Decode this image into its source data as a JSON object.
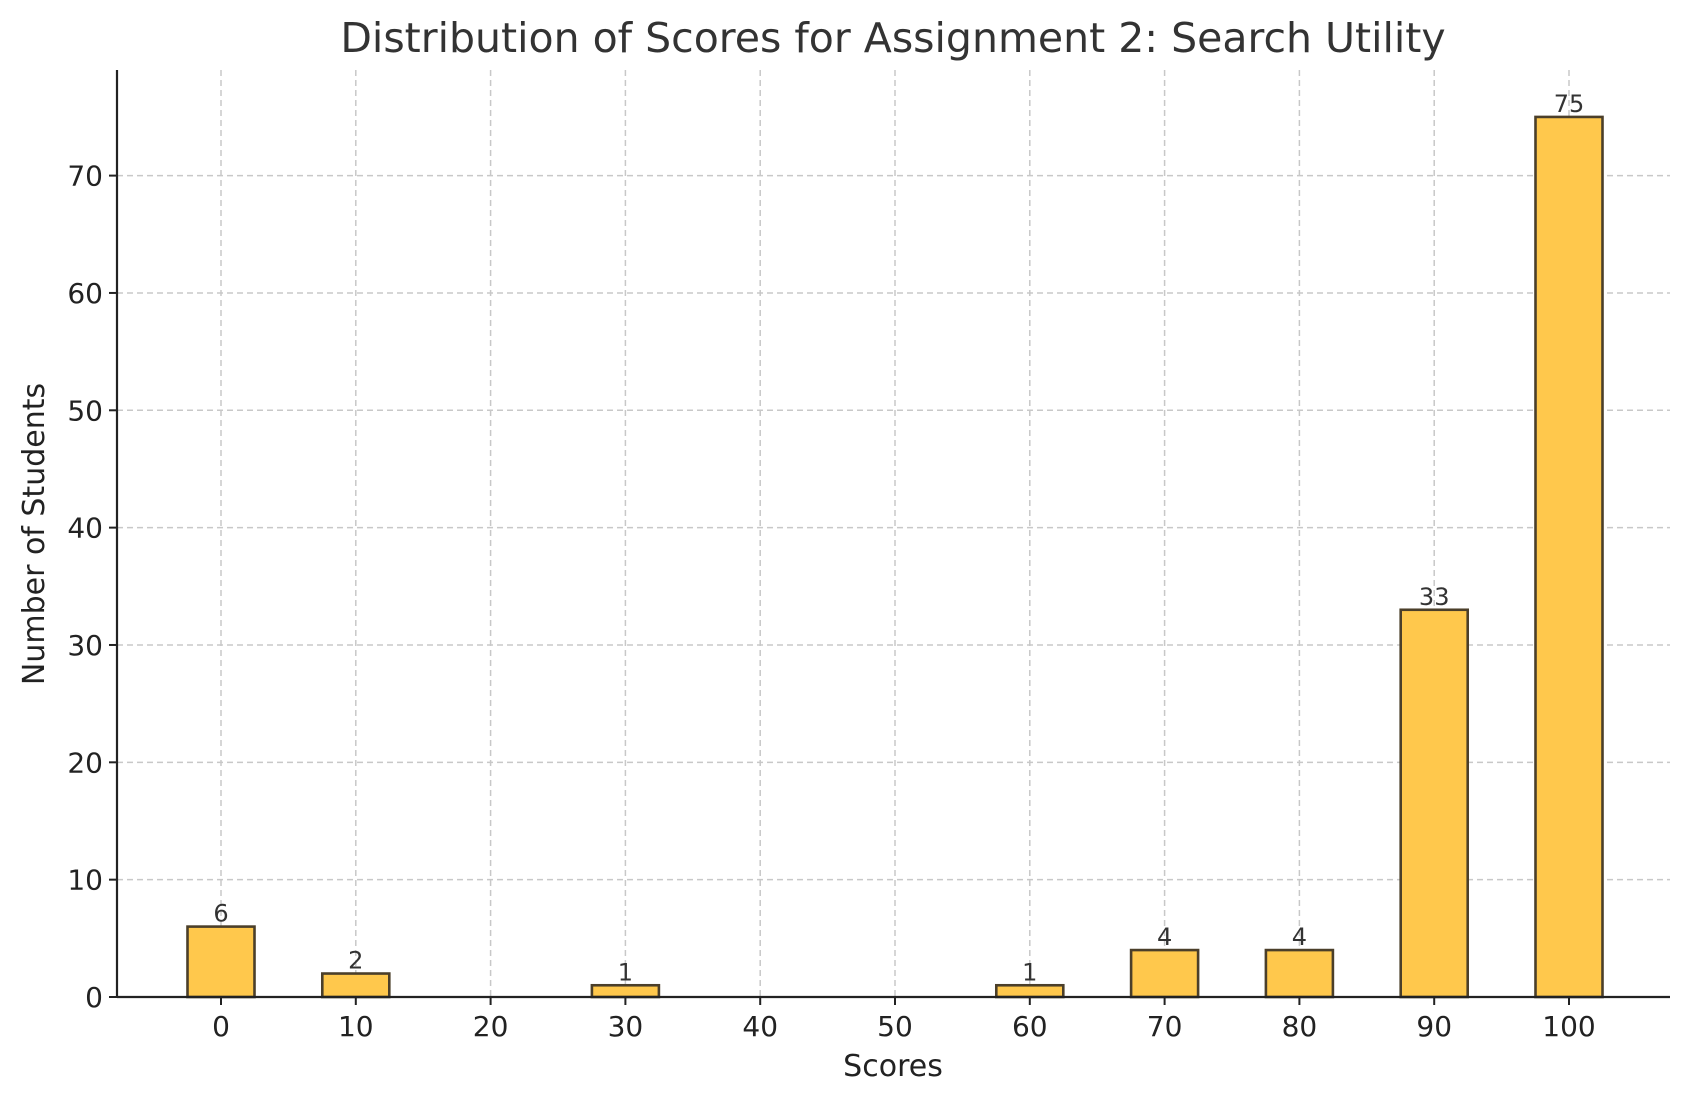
{
  "chart_data": {
    "type": "bar",
    "title": "Distribution of Scores for Assignment 2: Search Utility",
    "xlabel": "Scores",
    "ylabel": "Number of Students",
    "categories": [
      "0",
      "10",
      "20",
      "30",
      "40",
      "50",
      "60",
      "70",
      "80",
      "90",
      "100"
    ],
    "values": [
      6,
      2,
      0,
      1,
      0,
      0,
      1,
      4,
      4,
      33,
      75
    ],
    "value_labels": [
      "6",
      "2",
      "",
      "1",
      "",
      "",
      "1",
      "4",
      "4",
      "33",
      "75"
    ],
    "ylim": [
      0,
      79
    ],
    "y_ticks": [
      0,
      10,
      20,
      30,
      40,
      50,
      60,
      70
    ],
    "grid": true,
    "colors": {
      "bar_fill": "#ffc84c",
      "bar_edge": "#4b3f2a",
      "grid": "#c8c8c8",
      "axis": "#222222"
    }
  }
}
